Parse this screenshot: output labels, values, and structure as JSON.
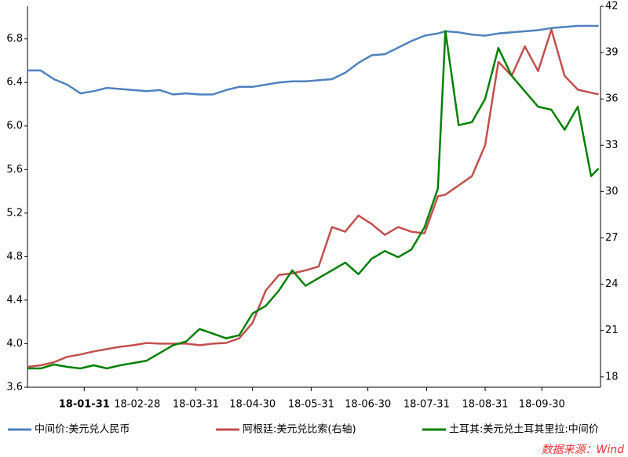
{
  "chart_data": {
    "type": "line",
    "x": [
      "18-01-01",
      "18-01-08",
      "18-01-15",
      "18-01-22",
      "18-01-29",
      "18-02-05",
      "18-02-12",
      "18-02-19",
      "18-02-26",
      "18-03-05",
      "18-03-12",
      "18-03-19",
      "18-03-26",
      "18-04-02",
      "18-04-09",
      "18-04-16",
      "18-04-23",
      "18-04-30",
      "18-05-07",
      "18-05-14",
      "18-05-21",
      "18-05-28",
      "18-06-04",
      "18-06-11",
      "18-06-18",
      "18-06-25",
      "18-07-02",
      "18-07-09",
      "18-07-16",
      "18-07-23",
      "18-07-30",
      "18-08-06",
      "18-08-10",
      "18-08-17",
      "18-08-24",
      "18-08-31",
      "18-09-07",
      "18-09-14",
      "18-09-21",
      "18-09-28",
      "18-10-05",
      "18-10-12",
      "18-10-19",
      "18-10-26",
      "18-10-30"
    ],
    "xlim": [
      "18-01-01",
      "18-10-31"
    ],
    "xticks": [
      "18-01-31",
      "18-02-28",
      "18-03-31",
      "18-04-30",
      "18-05-31",
      "18-06-30",
      "18-07-31",
      "18-08-31",
      "18-09-30"
    ],
    "ylim": [
      3.6,
      7.1
    ],
    "yticks": [
      3.6,
      {
        "value": 4,
        "label": "4.0"
      },
      4.4,
      4.8,
      5.2,
      5.6,
      {
        "value": 6,
        "label": "6.0"
      },
      6.4,
      6.8
    ],
    "y2lim": [
      17.33,
      42
    ],
    "y2ticks": [
      18,
      21,
      24,
      27,
      30,
      33,
      36,
      39,
      42
    ],
    "series": [
      {
        "name": "中间价:美元兑人民币",
        "color": "#4f81bd",
        "values": [
          6.51,
          6.51,
          6.43,
          6.38,
          6.3,
          6.32,
          6.35,
          6.34,
          6.33,
          6.32,
          6.33,
          6.29,
          6.3,
          6.29,
          6.29,
          6.33,
          6.36,
          6.36,
          6.38,
          6.4,
          6.41,
          6.41,
          6.42,
          6.43,
          6.49,
          6.58,
          6.65,
          6.66,
          6.72,
          6.78,
          6.83,
          6.85,
          6.87,
          6.86,
          6.84,
          6.83,
          6.85,
          6.86,
          6.87,
          6.88,
          6.9,
          6.91,
          6.92,
          6.92,
          6.92
        ]
      },
      {
        "name": "阿根廷:美元兑比索(右轴)",
        "color": "#c0504d",
        "axis": "y2",
        "values": [
          18.65,
          18.75,
          18.95,
          19.3,
          19.45,
          19.65,
          19.8,
          19.95,
          20.05,
          20.2,
          20.15,
          20.15,
          20.15,
          20.05,
          20.15,
          20.2,
          20.5,
          21.5,
          23.6,
          24.6,
          24.7,
          24.9,
          25.15,
          27.7,
          27.4,
          28.45,
          27.9,
          27.2,
          27.7,
          27.4,
          27.3,
          29.7,
          29.8,
          30.4,
          31.0,
          33.0,
          38.4,
          37.5,
          39.4,
          37.8,
          40.5,
          37.5,
          36.6,
          36.4,
          36.3
        ]
      },
      {
        "name": "土耳其:美元兑土耳其里拉:中间价",
        "color": "#008000",
        "axis": "y2",
        "values": [
          18.55,
          18.55,
          18.8,
          18.65,
          18.55,
          18.75,
          18.55,
          18.75,
          18.9,
          19.05,
          19.55,
          20.05,
          20.3,
          21.1,
          20.8,
          20.5,
          20.7,
          22.1,
          22.6,
          23.6,
          24.9,
          23.9,
          24.4,
          24.9,
          25.4,
          24.65,
          25.65,
          26.15,
          25.75,
          26.25,
          27.7,
          30.2,
          40.4,
          34.3,
          34.5,
          36.0,
          39.3,
          37.5,
          36.5,
          35.5,
          35.3,
          34.0,
          35.5,
          31.0,
          31.5
        ]
      }
    ],
    "source": "数据来源：Wind"
  }
}
